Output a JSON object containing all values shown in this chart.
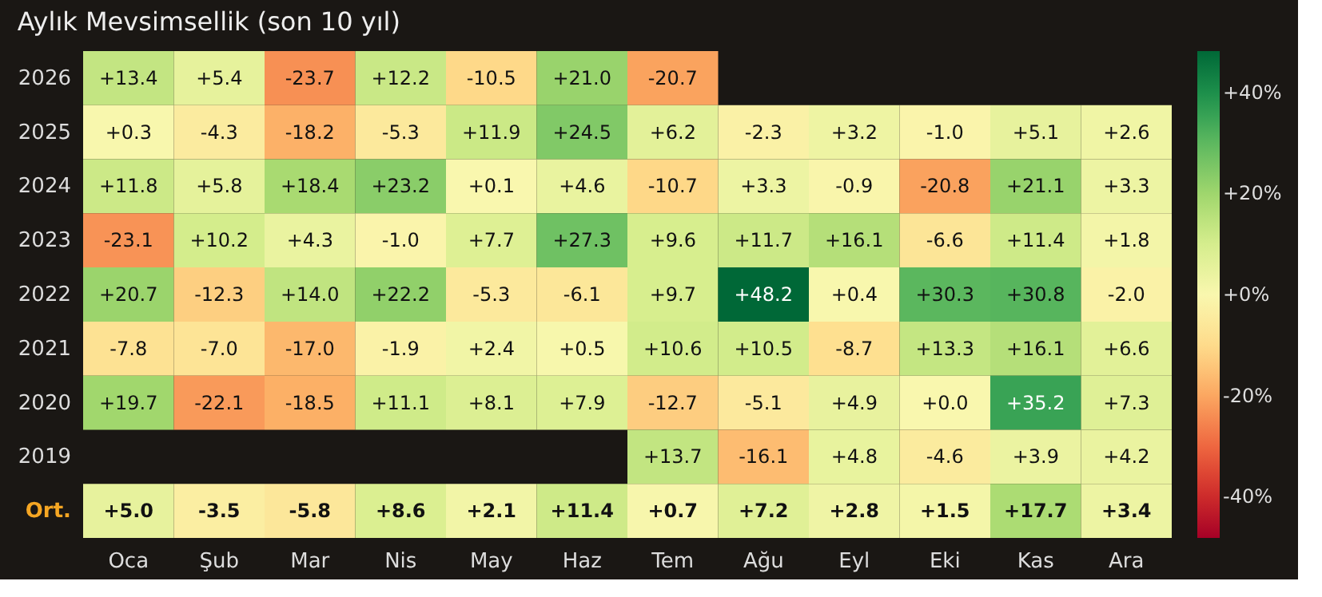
{
  "chart_data": {
    "type": "heatmap",
    "title": "Aylık Mevsimsellik (son 10 yıl)",
    "categories": [
      "Oca",
      "Şub",
      "Mar",
      "Nis",
      "May",
      "Haz",
      "Tem",
      "Ağu",
      "Eyl",
      "Eki",
      "Kas",
      "Ara"
    ],
    "y_categories": [
      "2026",
      "2025",
      "2024",
      "2023",
      "2022",
      "2021",
      "2020",
      "2019",
      "Ort."
    ],
    "cells": [
      [
        13.4,
        5.4,
        -23.7,
        12.2,
        -10.5,
        21.0,
        -20.7,
        null,
        null,
        null,
        null,
        null
      ],
      [
        0.3,
        -4.3,
        -18.2,
        -5.3,
        11.9,
        24.5,
        6.2,
        -2.3,
        3.2,
        -1.0,
        5.1,
        2.6
      ],
      [
        11.8,
        5.8,
        18.4,
        23.2,
        0.1,
        4.6,
        -10.7,
        3.3,
        -0.9,
        -20.8,
        21.1,
        3.3
      ],
      [
        -23.1,
        10.2,
        4.3,
        -1.0,
        7.7,
        27.3,
        9.6,
        11.7,
        16.1,
        -6.6,
        11.4,
        1.8
      ],
      [
        20.7,
        -12.3,
        14.0,
        22.2,
        -5.3,
        -6.1,
        9.7,
        48.2,
        0.4,
        30.3,
        30.8,
        -2.0
      ],
      [
        -7.8,
        -7.0,
        -17.0,
        -1.9,
        2.4,
        0.5,
        10.6,
        10.5,
        -8.7,
        13.3,
        16.1,
        6.6
      ],
      [
        19.7,
        -22.1,
        -18.5,
        11.1,
        8.1,
        7.9,
        -12.7,
        -5.1,
        4.9,
        0.0,
        35.2,
        7.3
      ],
      [
        null,
        null,
        null,
        null,
        null,
        null,
        13.7,
        -16.1,
        4.8,
        -4.6,
        3.9,
        4.2
      ],
      [
        5.0,
        -3.5,
        -5.8,
        8.6,
        2.1,
        11.4,
        0.7,
        7.2,
        2.8,
        1.5,
        17.7,
        3.4
      ]
    ],
    "cell_labels": [
      [
        "+13.4",
        "+5.4",
        "-23.7",
        "+12.2",
        "-10.5",
        "+21.0",
        "-20.7",
        null,
        null,
        null,
        null,
        null
      ],
      [
        "+0.3",
        "-4.3",
        "-18.2",
        "-5.3",
        "+11.9",
        "+24.5",
        "+6.2",
        "-2.3",
        "+3.2",
        "-1.0",
        "+5.1",
        "+2.6"
      ],
      [
        "+11.8",
        "+5.8",
        "+18.4",
        "+23.2",
        "+0.1",
        "+4.6",
        "-10.7",
        "+3.3",
        "-0.9",
        "-20.8",
        "+21.1",
        "+3.3"
      ],
      [
        "-23.1",
        "+10.2",
        "+4.3",
        "-1.0",
        "+7.7",
        "+27.3",
        "+9.6",
        "+11.7",
        "+16.1",
        "-6.6",
        "+11.4",
        "+1.8"
      ],
      [
        "+20.7",
        "-12.3",
        "+14.0",
        "+22.2",
        "-5.3",
        "-6.1",
        "+9.7",
        "+48.2",
        "+0.4",
        "+30.3",
        "+30.8",
        "-2.0"
      ],
      [
        "-7.8",
        "-7.0",
        "-17.0",
        "-1.9",
        "+2.4",
        "+0.5",
        "+10.6",
        "+10.5",
        "-8.7",
        "+13.3",
        "+16.1",
        "+6.6"
      ],
      [
        "+19.7",
        "-22.1",
        "-18.5",
        "+11.1",
        "+8.1",
        "+7.9",
        "-12.7",
        "-5.1",
        "+4.9",
        "+0.0",
        "+35.2",
        "+7.3"
      ],
      [
        null,
        null,
        null,
        null,
        null,
        null,
        "+13.7",
        "-16.1",
        "+4.8",
        "-4.6",
        "+3.9",
        "+4.2"
      ],
      [
        "+5.0",
        "-3.5",
        "-5.8",
        "+8.6",
        "+2.1",
        "+11.4",
        "+0.7",
        "+7.2",
        "+2.8",
        "+1.5",
        "+17.7",
        "+3.4"
      ]
    ],
    "clim": [
      -48.2,
      48.2
    ],
    "cticks": [
      {
        "value": 40,
        "label": "+40%"
      },
      {
        "value": 20,
        "label": "+20%"
      },
      {
        "value": 0,
        "label": "+0%"
      },
      {
        "value": -20,
        "label": "-20%"
      },
      {
        "value": -40,
        "label": "-40%"
      }
    ]
  }
}
